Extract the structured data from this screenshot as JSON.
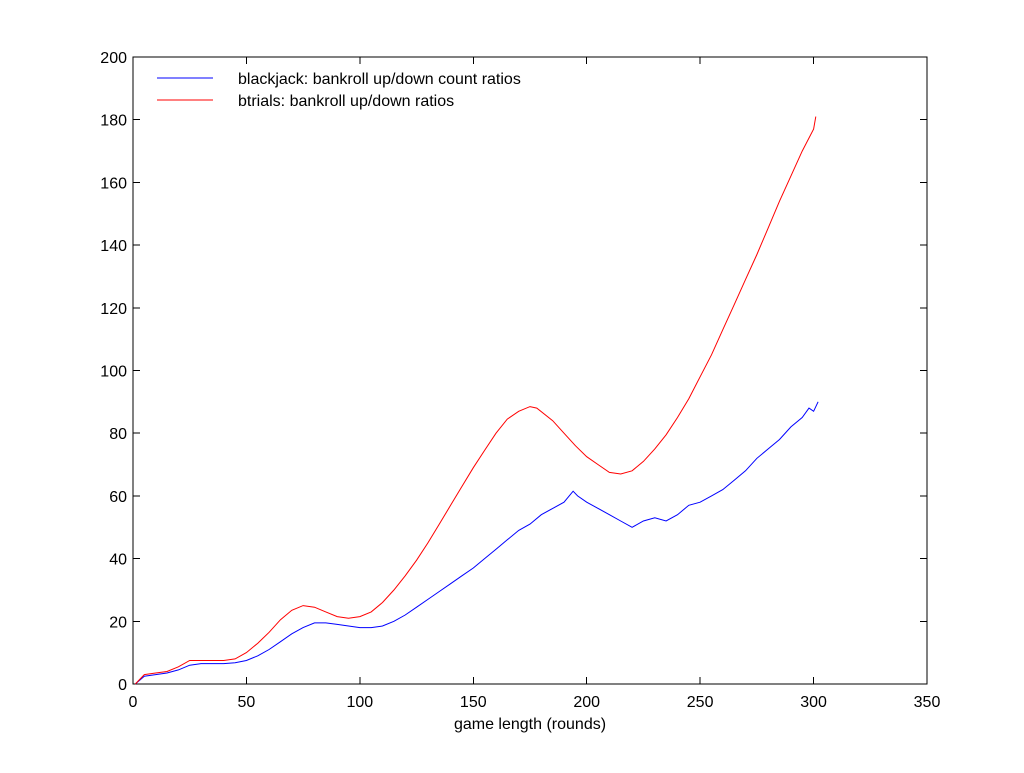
{
  "chart_data": {
    "type": "line",
    "title": "",
    "xlabel": "game length (rounds)",
    "ylabel": "",
    "xlim": [
      0,
      350
    ],
    "ylim": [
      0,
      200
    ],
    "xticks": [
      0,
      50,
      100,
      150,
      200,
      250,
      300,
      350
    ],
    "yticks": [
      0,
      20,
      40,
      60,
      80,
      100,
      120,
      140,
      160,
      180,
      200
    ],
    "grid": false,
    "legend_position": "top-left",
    "series": [
      {
        "name": "blackjack: bankroll up/down count ratios",
        "color": "#0000ff",
        "x": [
          1,
          5,
          10,
          15,
          20,
          25,
          30,
          35,
          40,
          45,
          50,
          55,
          60,
          65,
          70,
          75,
          80,
          85,
          90,
          95,
          100,
          105,
          110,
          115,
          120,
          125,
          130,
          135,
          140,
          145,
          150,
          155,
          160,
          165,
          170,
          175,
          180,
          185,
          190,
          194,
          196,
          200,
          205,
          210,
          215,
          220,
          225,
          230,
          235,
          240,
          245,
          250,
          255,
          260,
          265,
          270,
          275,
          280,
          285,
          290,
          295,
          298,
          300,
          302
        ],
        "y": [
          0,
          2.5,
          3,
          3.5,
          4.5,
          6,
          6.5,
          6.5,
          6.5,
          6.8,
          7.5,
          9,
          11,
          13.5,
          16,
          18,
          19.5,
          19.5,
          19,
          18.5,
          18,
          18,
          18.5,
          20,
          22,
          24.5,
          27,
          29.5,
          32,
          34.5,
          37,
          40,
          43,
          46,
          49,
          51,
          54,
          56,
          58,
          61.5,
          60,
          58,
          56,
          54,
          52,
          50,
          52,
          53,
          52,
          54,
          57,
          58,
          60,
          62,
          65,
          68,
          72,
          75,
          78,
          82,
          85,
          88,
          87,
          90
        ]
      },
      {
        "name": "btrials: bankroll up/down ratios",
        "color": "#ff0000",
        "x": [
          1,
          5,
          10,
          15,
          20,
          25,
          30,
          35,
          40,
          45,
          50,
          55,
          60,
          65,
          70,
          75,
          80,
          85,
          90,
          95,
          100,
          105,
          110,
          115,
          120,
          125,
          130,
          135,
          140,
          145,
          150,
          155,
          160,
          165,
          170,
          175,
          178,
          185,
          190,
          195,
          200,
          205,
          210,
          215,
          220,
          225,
          230,
          235,
          240,
          245,
          250,
          255,
          260,
          265,
          270,
          275,
          280,
          285,
          290,
          295,
          300,
          301
        ],
        "y": [
          0,
          3,
          3.5,
          4,
          5.5,
          7.5,
          7.5,
          7.5,
          7.5,
          8,
          10,
          13,
          16.5,
          20.5,
          23.5,
          25,
          24.5,
          23,
          21.5,
          21,
          21.5,
          23,
          26,
          30,
          34.5,
          39.5,
          45,
          51,
          57,
          63,
          69,
          74.5,
          80,
          84.5,
          87,
          88.5,
          88,
          84,
          80,
          76,
          72.5,
          70,
          67.5,
          67,
          68,
          71,
          75,
          79.5,
          85,
          91,
          98,
          105,
          113,
          121,
          129,
          137,
          145.5,
          154,
          162,
          170,
          177,
          181
        ]
      }
    ]
  }
}
